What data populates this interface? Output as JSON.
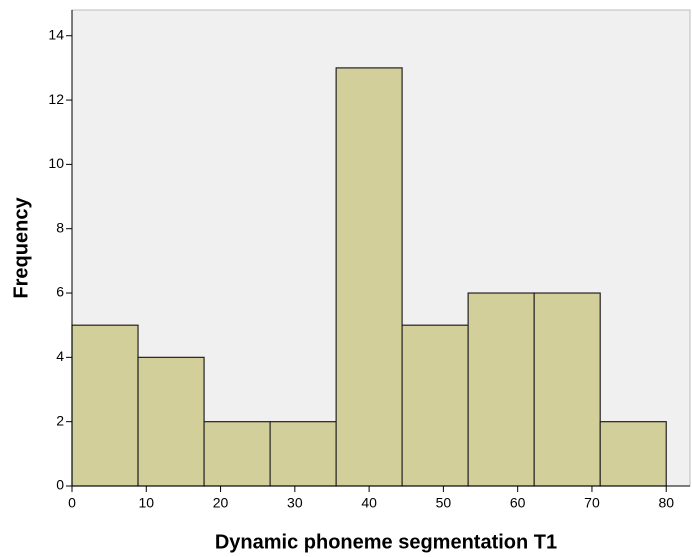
{
  "chart_data": {
    "type": "histogram",
    "x_label": "Dynamic phoneme segmentation T1",
    "y_label": "Frequency",
    "bins": [
      0,
      8.89,
      17.78,
      26.67,
      35.56,
      44.44,
      53.33,
      62.22,
      71.11,
      80
    ],
    "values": [
      5,
      4,
      2,
      2,
      13,
      5,
      6,
      6,
      2
    ],
    "color": "#d3cf9b",
    "xlim": [
      0,
      83.2
    ],
    "xticks": [
      0,
      10,
      20,
      30,
      40,
      50,
      60,
      70,
      80
    ],
    "ylim": [
      0,
      14.8
    ],
    "yticks": [
      0,
      2,
      4,
      6,
      8,
      10,
      12,
      14
    ],
    "grid": false
  }
}
